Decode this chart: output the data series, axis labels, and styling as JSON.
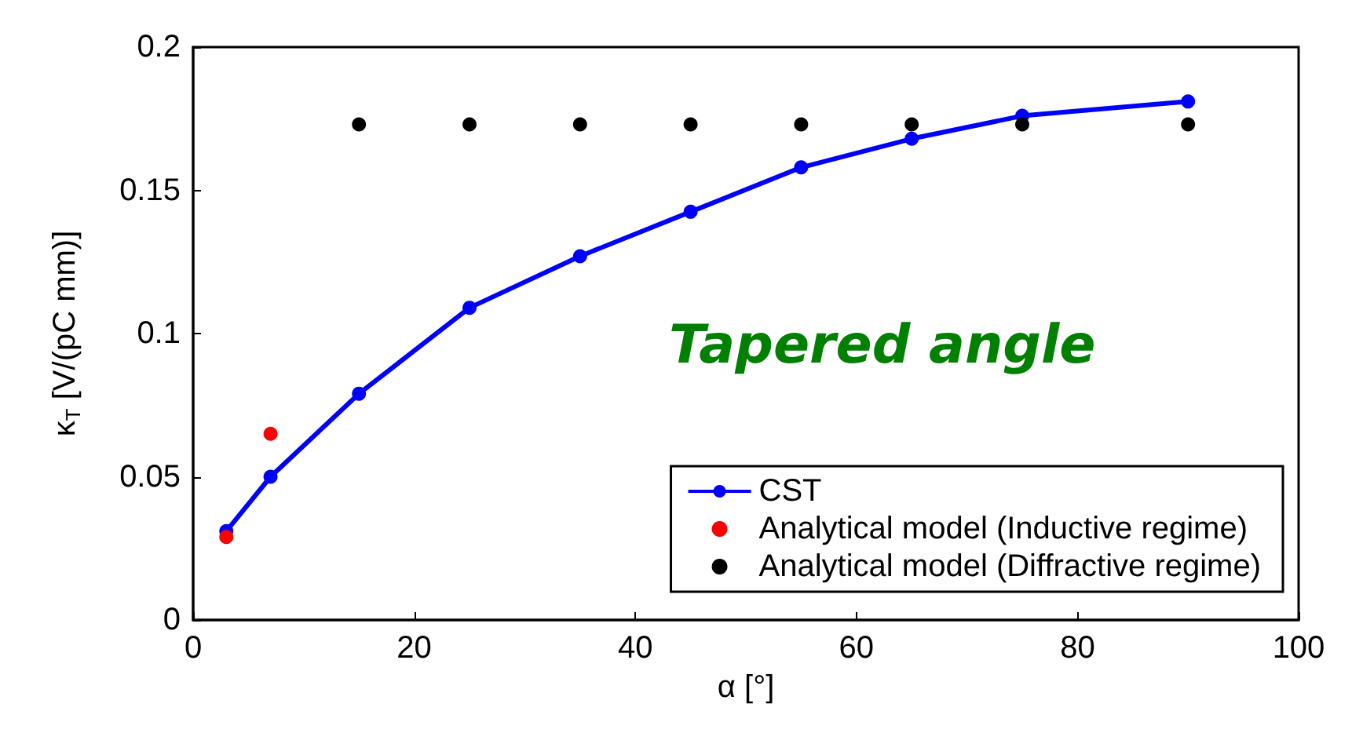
{
  "chart_data": {
    "type": "line",
    "xlabel": "α [°]",
    "ylabel": "κ$_{T}$ [V/(pC mm)]",
    "xlim": [
      0,
      100
    ],
    "xticks": [
      0,
      20,
      40,
      60,
      80,
      100
    ],
    "ylim": [
      0,
      0.2
    ],
    "yticks": [
      0,
      0.05,
      0.1,
      0.15,
      0.2
    ],
    "grid": false,
    "legend": "bottom right",
    "marker": "circle",
    "line_style": "solid",
    "annotations": [
      "Tapered angle"
    ],
    "series": [
      {
        "name": "CST",
        "color": "#0000ff",
        "x": [
          3,
          7,
          15,
          25,
          35,
          45,
          55,
          65,
          75,
          90
        ],
        "values": [
          0.031,
          0.05,
          0.079,
          0.109,
          0.127,
          0.1425,
          0.158,
          0.168,
          0.176,
          0.181
        ]
      },
      {
        "name": "Analytical model (Inductive regime)",
        "type": "scatter",
        "color": "#ff0000",
        "x": [
          3,
          7
        ],
        "values": [
          0.029,
          0.065
        ]
      },
      {
        "name": "Analytical model (Diffractive regime)",
        "type": "scatter",
        "color": "#000000",
        "x": [
          15,
          25,
          35,
          45,
          55,
          65,
          75,
          90
        ],
        "values": [
          0.173,
          0.173,
          0.173,
          0.173,
          0.173,
          0.173,
          0.173,
          0.173
        ]
      }
    ]
  }
}
